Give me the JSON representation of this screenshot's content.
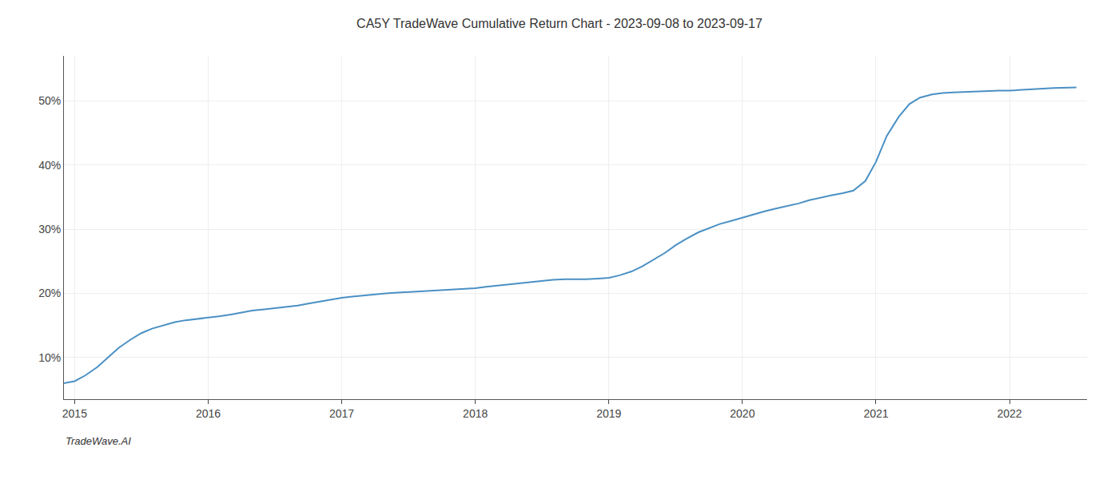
{
  "chart_data": {
    "type": "line",
    "title": "CA5Y TradeWave Cumulative Return Chart - 2023-09-08 to 2023-09-17",
    "annotations": [
      "TradeWave.AI"
    ],
    "color": "#4a90c4",
    "grid": true,
    "x": [
      2014.92,
      2015.0,
      2015.08,
      2015.17,
      2015.25,
      2015.33,
      2015.42,
      2015.5,
      2015.58,
      2015.67,
      2015.75,
      2015.83,
      2015.92,
      2016.0,
      2016.08,
      2016.17,
      2016.25,
      2016.33,
      2016.42,
      2016.5,
      2016.58,
      2016.67,
      2016.75,
      2016.83,
      2016.92,
      2017.0,
      2017.08,
      2017.17,
      2017.25,
      2017.33,
      2017.42,
      2017.5,
      2017.58,
      2017.67,
      2017.75,
      2017.83,
      2017.92,
      2018.0,
      2018.08,
      2018.17,
      2018.25,
      2018.33,
      2018.42,
      2018.5,
      2018.58,
      2018.67,
      2018.75,
      2018.83,
      2018.92,
      2019.0,
      2019.08,
      2019.17,
      2019.25,
      2019.33,
      2019.42,
      2019.5,
      2019.58,
      2019.67,
      2019.75,
      2019.83,
      2019.92,
      2020.0,
      2020.08,
      2020.17,
      2020.25,
      2020.33,
      2020.42,
      2020.5,
      2020.58,
      2020.67,
      2020.75,
      2020.83,
      2020.92,
      2021.0,
      2021.08,
      2021.17,
      2021.25,
      2021.33,
      2021.42,
      2021.5,
      2021.58,
      2021.67,
      2021.75,
      2021.83,
      2021.92,
      2022.0,
      2022.08,
      2022.17,
      2022.25,
      2022.33,
      2022.5
    ],
    "values": [
      6.0,
      6.3,
      7.2,
      8.5,
      10.0,
      11.5,
      12.8,
      13.8,
      14.5,
      15.0,
      15.5,
      15.8,
      16.0,
      16.2,
      16.4,
      16.7,
      17.0,
      17.3,
      17.5,
      17.7,
      17.9,
      18.1,
      18.4,
      18.7,
      19.0,
      19.3,
      19.5,
      19.7,
      19.9,
      20.0,
      20.1,
      20.2,
      20.3,
      20.4,
      20.5,
      20.6,
      20.7,
      20.8,
      21.0,
      21.2,
      21.4,
      21.6,
      21.8,
      22.0,
      22.1,
      22.2,
      22.2,
      22.2,
      22.3,
      22.4,
      22.8,
      23.4,
      24.2,
      25.2,
      26.3,
      27.5,
      28.5,
      29.5,
      30.2,
      30.8,
      31.3,
      31.8,
      32.3,
      32.8,
      33.2,
      33.6,
      34.0,
      34.5,
      34.9,
      35.3,
      35.6,
      36.0,
      37.5,
      40.5,
      44.5,
      47.5,
      49.5,
      50.5,
      51.0,
      51.2,
      51.3,
      51.4,
      51.5,
      51.5,
      51.6,
      51.6,
      51.7,
      51.8,
      51.9,
      52.0,
      52.1
    ],
    "xlim": [
      2014.92,
      2022.58
    ],
    "ylim": [
      3.5,
      57
    ],
    "xticks": [
      2015,
      2016,
      2017,
      2018,
      2019,
      2020,
      2021,
      2022
    ],
    "yticks": [
      {
        "value": 10,
        "label": "10%"
      },
      {
        "value": 20,
        "label": "20%"
      },
      {
        "value": 30,
        "label": "30%"
      },
      {
        "value": 40,
        "label": "40%"
      },
      {
        "value": 50,
        "label": "50%"
      }
    ]
  }
}
